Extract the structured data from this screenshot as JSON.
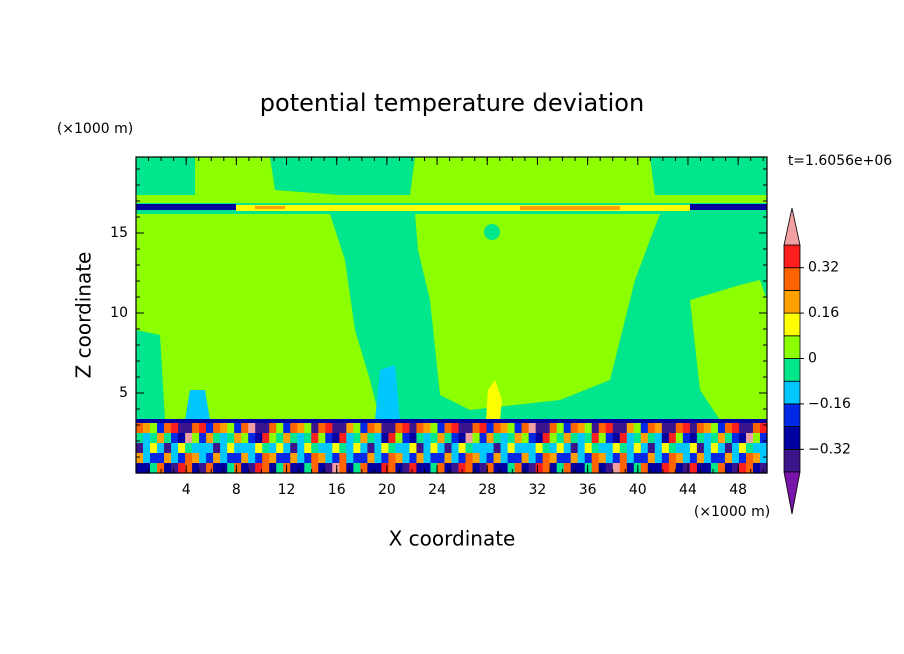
{
  "chart_data": {
    "type": "contour",
    "title": "potential temperature deviation",
    "x_label": "X coordinate",
    "y_label": "Z coordinate",
    "x_unit": "(×1000 m)",
    "y_unit": "(×1000 m)",
    "time_label": "t=1.6056e+06",
    "xlim": [
      0,
      50.3
    ],
    "xticks": [
      4,
      8,
      12,
      16,
      20,
      24,
      28,
      32,
      36,
      40,
      44,
      48
    ],
    "ylim": [
      0,
      19.75
    ],
    "yticks": [
      5,
      10,
      15
    ],
    "colorbar": {
      "levels": [
        -0.4,
        -0.32,
        -0.24,
        -0.16,
        -0.08,
        0,
        0.08,
        0.16,
        0.24,
        0.32,
        0.4
      ],
      "colors": [
        "#3c148c",
        "#0000a0",
        "#0028e6",
        "#00c8ff",
        "#00e68c",
        "#8cff00",
        "#ffff00",
        "#ffa000",
        "#ff6400",
        "#ff1e1e"
      ],
      "under_color": "#7814aa",
      "over_color": "#f0a0a0",
      "ticks": [
        0.32,
        0.16,
        0,
        {
          "value": -0.16,
          "label": "−0.16"
        },
        {
          "value": -0.32,
          "label": "−0.32"
        }
      ]
    }
  }
}
